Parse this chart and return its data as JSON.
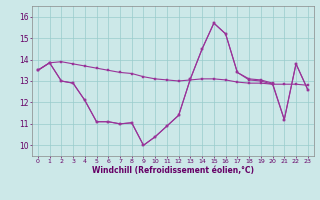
{
  "series1": [
    13.5,
    13.85,
    13.9,
    13.8,
    13.7,
    13.6,
    13.5,
    13.4,
    13.35,
    13.2,
    13.1,
    13.05,
    13.0,
    13.05,
    13.1,
    13.1,
    13.05,
    12.95,
    12.9,
    12.9,
    12.85,
    12.85,
    12.85,
    12.8
  ],
  "series2": [
    13.5,
    13.85,
    13.0,
    12.9,
    12.1,
    11.1,
    11.1,
    11.0,
    11.05,
    10.0,
    10.4,
    10.9,
    11.4,
    13.1,
    14.5,
    15.7,
    15.2,
    13.4,
    13.1,
    13.05,
    12.9,
    11.2,
    13.8,
    12.6
  ],
  "series3": [
    13.5,
    13.85,
    13.0,
    12.9,
    12.1,
    11.1,
    11.1,
    11.0,
    11.05,
    10.0,
    10.4,
    10.9,
    11.4,
    13.1,
    14.5,
    15.7,
    15.2,
    13.4,
    13.05,
    13.0,
    12.85,
    11.2,
    13.8,
    12.6
  ],
  "x": [
    0,
    1,
    2,
    3,
    4,
    5,
    6,
    7,
    8,
    9,
    10,
    11,
    12,
    13,
    14,
    15,
    16,
    17,
    18,
    19,
    20,
    21,
    22,
    23
  ],
  "line_color": "#993399",
  "bg_color": "#cce8e8",
  "grid_color": "#99cccc",
  "xlabel": "Windchill (Refroidissement éolien,°C)",
  "ylim": [
    9.5,
    16.5
  ],
  "xlim": [
    -0.5,
    23.5
  ],
  "yticks": [
    10,
    11,
    12,
    13,
    14,
    15,
    16
  ],
  "xtick_labels": [
    "0",
    "1",
    "2",
    "3",
    "4",
    "5",
    "6",
    "7",
    "8",
    "9",
    "10",
    "11",
    "12",
    "13",
    "14",
    "15",
    "16",
    "17",
    "18",
    "19",
    "20",
    "21",
    "22",
    "23"
  ]
}
